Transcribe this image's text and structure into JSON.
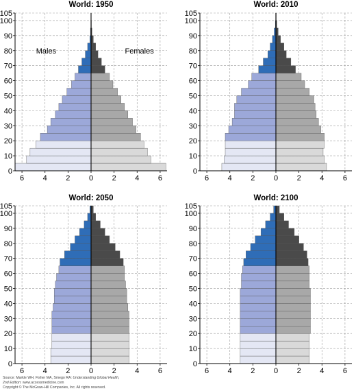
{
  "chart_data": [
    {
      "type": "bar",
      "orientation": "horizontal",
      "layout": "population-pyramid",
      "title": "World: 1950",
      "x_unit": "percent of population",
      "y_unit": "age (years)",
      "y_ticks": [
        0,
        10,
        20,
        30,
        40,
        50,
        60,
        70,
        80,
        90,
        100,
        105
      ],
      "x_tick_labels": [
        "6",
        "4",
        "2",
        "0",
        "2",
        "4",
        "6"
      ],
      "xlim": [
        -6.6,
        6.6
      ],
      "ylim": [
        0,
        105
      ],
      "grid": true,
      "annotations": {
        "left": "Males",
        "right": "Females"
      },
      "age_groups": [
        "0-4",
        "5-9",
        "10-14",
        "15-19",
        "20-24",
        "25-29",
        "30-34",
        "35-39",
        "40-44",
        "45-49",
        "50-54",
        "55-59",
        "60-64",
        "65-69",
        "70-74",
        "75-79",
        "80-84",
        "85-89",
        "90-94",
        "95-99",
        "100+"
      ],
      "series": [
        {
          "name": "Males",
          "values": [
            6.6,
            5.6,
            5.3,
            4.8,
            4.4,
            3.8,
            3.5,
            3.1,
            2.8,
            2.5,
            2.1,
            1.7,
            1.4,
            1.1,
            0.8,
            0.5,
            0.3,
            0.1,
            0.05,
            0.02,
            0.01
          ]
        },
        {
          "name": "Females",
          "values": [
            6.5,
            5.2,
            4.9,
            4.6,
            4.3,
            3.9,
            3.6,
            3.2,
            2.9,
            2.6,
            2.3,
            1.9,
            1.6,
            1.2,
            0.9,
            0.6,
            0.4,
            0.2,
            0.08,
            0.03,
            0.01
          ]
        }
      ]
    },
    {
      "type": "bar",
      "orientation": "horizontal",
      "layout": "population-pyramid",
      "title": "World: 2010",
      "x_unit": "percent of population",
      "y_unit": "age (years)",
      "y_ticks": [
        0,
        10,
        20,
        30,
        40,
        50,
        60,
        70,
        80,
        90,
        100,
        105
      ],
      "x_tick_labels": [
        "6",
        "4",
        "2",
        "0",
        "2",
        "4",
        "6"
      ],
      "xlim": [
        -6.6,
        6.6
      ],
      "ylim": [
        0,
        105
      ],
      "grid": true,
      "age_groups": [
        "0-4",
        "5-9",
        "10-14",
        "15-19",
        "20-24",
        "25-29",
        "30-34",
        "35-39",
        "40-44",
        "45-49",
        "50-54",
        "55-59",
        "60-64",
        "65-69",
        "70-74",
        "75-79",
        "80-84",
        "85-89",
        "90-94",
        "95-99",
        "100+"
      ],
      "series": [
        {
          "name": "Males",
          "values": [
            4.7,
            4.5,
            4.4,
            4.4,
            4.4,
            4.1,
            3.8,
            3.6,
            3.6,
            3.4,
            3.0,
            2.4,
            2.1,
            1.5,
            1.1,
            0.7,
            0.5,
            0.3,
            0.15,
            0.05,
            0.02
          ]
        },
        {
          "name": "Females",
          "values": [
            4.4,
            4.2,
            4.1,
            4.2,
            4.2,
            3.9,
            3.7,
            3.5,
            3.4,
            3.3,
            2.9,
            2.5,
            2.2,
            1.7,
            1.3,
            0.9,
            0.7,
            0.4,
            0.2,
            0.08,
            0.03
          ]
        }
      ]
    },
    {
      "type": "bar",
      "orientation": "horizontal",
      "layout": "population-pyramid",
      "title": "World: 2050",
      "x_unit": "percent of population",
      "y_unit": "age (years)",
      "y_ticks": [
        0,
        10,
        20,
        30,
        40,
        50,
        60,
        70,
        80,
        90,
        100,
        105
      ],
      "x_tick_labels": [
        "6",
        "4",
        "2",
        "0",
        "2",
        "4",
        "6"
      ],
      "xlim": [
        -6.6,
        6.6
      ],
      "ylim": [
        0,
        105
      ],
      "grid": true,
      "age_groups": [
        "0-4",
        "5-9",
        "10-14",
        "15-19",
        "20-24",
        "25-29",
        "30-34",
        "35-39",
        "40-44",
        "45-49",
        "50-54",
        "55-59",
        "60-64",
        "65-69",
        "70-74",
        "75-79",
        "80-84",
        "85-89",
        "90-94",
        "95-99",
        "100+"
      ],
      "series": [
        {
          "name": "Males",
          "values": [
            3.5,
            3.5,
            3.4,
            3.4,
            3.4,
            3.4,
            3.4,
            3.3,
            3.2,
            3.2,
            3.1,
            3.0,
            2.8,
            2.7,
            2.3,
            1.8,
            1.4,
            1.0,
            0.6,
            0.3,
            0.1
          ]
        },
        {
          "name": "Females",
          "values": [
            3.3,
            3.3,
            3.3,
            3.3,
            3.3,
            3.3,
            3.3,
            3.2,
            3.1,
            3.1,
            3.0,
            2.9,
            2.9,
            2.8,
            2.5,
            2.1,
            1.6,
            1.2,
            0.8,
            0.4,
            0.2
          ]
        }
      ]
    },
    {
      "type": "bar",
      "orientation": "horizontal",
      "layout": "population-pyramid",
      "title": "World: 2100",
      "x_unit": "percent of population",
      "y_unit": "age (years)",
      "y_ticks": [
        0,
        10,
        20,
        30,
        40,
        50,
        60,
        70,
        80,
        90,
        100,
        105
      ],
      "x_tick_labels": [
        "6",
        "4",
        "2",
        "0",
        "2",
        "4",
        "6"
      ],
      "xlim": [
        -6.6,
        6.6
      ],
      "ylim": [
        0,
        105
      ],
      "grid": true,
      "age_groups": [
        "0-4",
        "5-9",
        "10-14",
        "15-19",
        "20-24",
        "25-29",
        "30-34",
        "35-39",
        "40-44",
        "45-49",
        "50-54",
        "55-59",
        "60-64",
        "65-69",
        "70-74",
        "75-79",
        "80-84",
        "85-89",
        "90-94",
        "95-99",
        "100+"
      ],
      "series": [
        {
          "name": "Males",
          "values": [
            3.1,
            3.1,
            3.1,
            3.1,
            3.1,
            3.1,
            3.1,
            3.1,
            3.1,
            3.1,
            3.0,
            3.0,
            2.9,
            2.8,
            2.6,
            2.2,
            1.8,
            1.3,
            0.9,
            0.5,
            0.2
          ]
        },
        {
          "name": "Females",
          "values": [
            2.9,
            2.9,
            2.9,
            2.9,
            3.0,
            3.0,
            3.0,
            3.0,
            3.0,
            3.0,
            2.9,
            2.9,
            2.9,
            2.8,
            2.7,
            2.4,
            2.0,
            1.6,
            1.1,
            0.7,
            0.3
          ]
        }
      ]
    }
  ],
  "colors": {
    "male_young": "#e4e7f4",
    "male_adult": "#9ca8d9",
    "male_old": "#2f6db7",
    "female_young": "#d9d9d9",
    "female_adult": "#a8a8a8",
    "female_old": "#4a4a4a",
    "axis": "#000000",
    "grid": "#9a9a9a"
  },
  "credit": {
    "line1_prefix": "Source: Markle WH, Fisher MA, Smego RA: ",
    "line1_italic": "Understanding Global Health,",
    "line2_italic": "2nd Edition",
    "line2_rest": ": www.accessmedicine.com",
    "line3": "Copyright © The McGraw-Hill Companies, Inc. All rights reserved."
  }
}
